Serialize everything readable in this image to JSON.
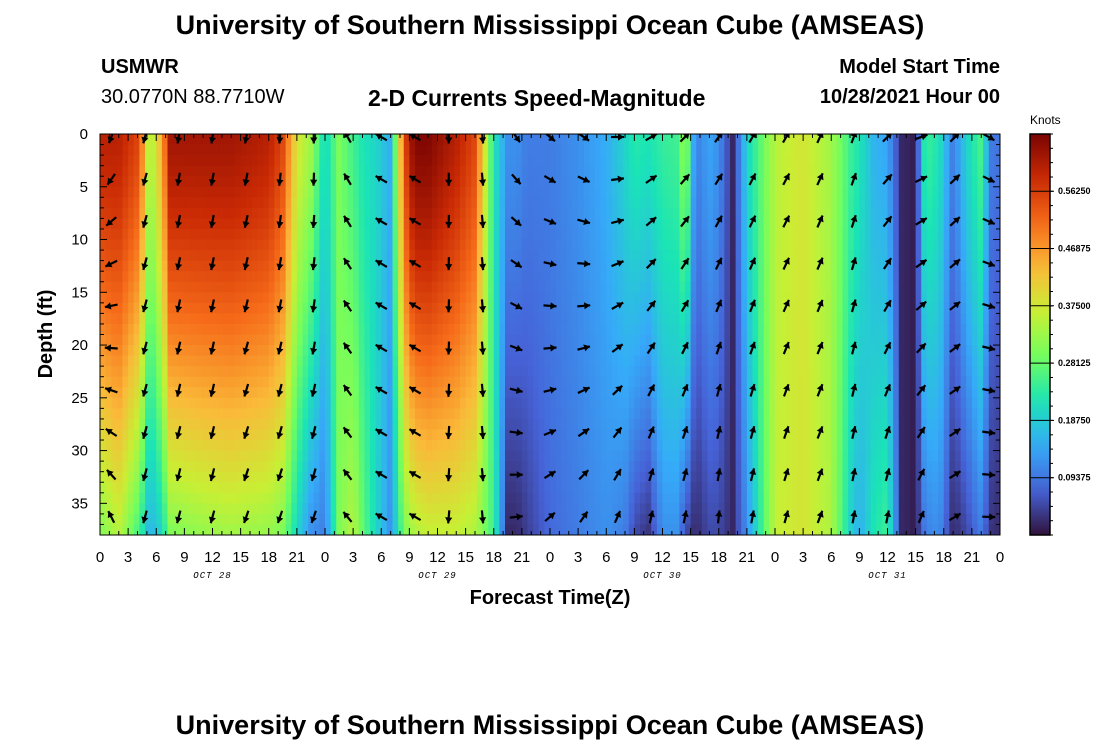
{
  "header": {
    "title": "University of Southern Mississippi Ocean Cube (AMSEAS)",
    "station": "USMWR",
    "coords": "30.0770N  88.7710W",
    "plot_title": "2-D Currents Speed-Magnitude",
    "model_label": "Model Start Time",
    "model_time": "10/28/2021 Hour 00"
  },
  "footer": {
    "title": "University of Southern Mississippi Ocean Cube (AMSEAS)"
  },
  "colors": {
    "palette": [
      "#30123b",
      "#4662d7",
      "#36aaf9",
      "#1ae4b6",
      "#72fe5e",
      "#c8ef34",
      "#faba39",
      "#f66b19",
      "#ca2a04",
      "#7a0403"
    ]
  },
  "chart_data": {
    "type": "heatmap",
    "title": "2-D Currents Speed-Magnitude",
    "xlabel": "Forecast Time(Z)",
    "ylabel": "Depth (ft)",
    "x_range_hours": [
      0,
      96
    ],
    "y_range_ft": [
      0,
      38
    ],
    "x_ticks": [
      "0",
      "3",
      "6",
      "9",
      "12",
      "15",
      "18",
      "21",
      "0",
      "3",
      "6",
      "9",
      "12",
      "15",
      "18",
      "21",
      "0",
      "3",
      "6",
      "9",
      "12",
      "15",
      "18",
      "21",
      "0",
      "3",
      "6",
      "9",
      "12",
      "15",
      "18",
      "21",
      "0"
    ],
    "day_labels": [
      "OCT 28",
      "OCT 29",
      "OCT 30",
      "OCT 31"
    ],
    "y_ticks": [
      "0",
      "5",
      "10",
      "15",
      "20",
      "25",
      "30",
      "35"
    ],
    "colorbar": {
      "unit": "Knots",
      "range": [
        0.0,
        0.656
      ],
      "labels": [
        "0.56250",
        "0.46875",
        "0.37500",
        "0.28125",
        "0.18750",
        "0.09375"
      ]
    },
    "profile_keypoints": {
      "hours": [
        0,
        2,
        4.2,
        5.3,
        6.6,
        7.5,
        11,
        14,
        18,
        19.5,
        21,
        22.5,
        24,
        25.5,
        27,
        28,
        29.5,
        31,
        32.5,
        33.5,
        35,
        38,
        40,
        42,
        43.5,
        44.5,
        45.5,
        48,
        51,
        54,
        56,
        57,
        58.5,
        60,
        61.5,
        62.5,
        63.5,
        65,
        66,
        67.5,
        69,
        72,
        75,
        78,
        80,
        81,
        82.5,
        84,
        85.5,
        87,
        88,
        89.5,
        91,
        92.5,
        94,
        95,
        96
      ],
      "surface_knots": [
        0.6,
        0.6,
        0.55,
        0.32,
        0.45,
        0.62,
        0.62,
        0.62,
        0.6,
        0.55,
        0.38,
        0.33,
        0.2,
        0.3,
        0.25,
        0.22,
        0.2,
        0.15,
        0.55,
        0.65,
        0.65,
        0.6,
        0.55,
        0.22,
        0.12,
        0.12,
        0.1,
        0.1,
        0.12,
        0.15,
        0.2,
        0.23,
        0.22,
        0.24,
        0.25,
        0.33,
        0.1,
        0.14,
        0.12,
        0.02,
        0.2,
        0.35,
        0.38,
        0.33,
        0.25,
        0.22,
        0.16,
        0.14,
        0.02,
        0.01,
        0.25,
        0.22,
        0.1,
        0.2,
        0.26,
        0.1,
        0.09
      ],
      "bottom_knots": [
        0.3,
        0.35,
        0.25,
        0.15,
        0.2,
        0.3,
        0.32,
        0.33,
        0.32,
        0.3,
        0.2,
        0.12,
        0.1,
        0.3,
        0.35,
        0.28,
        0.2,
        0.12,
        0.3,
        0.34,
        0.36,
        0.36,
        0.34,
        0.25,
        0.02,
        0.02,
        0.04,
        0.08,
        0.1,
        0.12,
        0.1,
        0.05,
        0.03,
        0.12,
        0.12,
        0.05,
        0.02,
        0.05,
        0.05,
        0.02,
        0.12,
        0.36,
        0.38,
        0.34,
        0.2,
        0.15,
        0.22,
        0.25,
        0.02,
        0.01,
        0.1,
        0.12,
        0.02,
        0.05,
        0.1,
        0.03,
        0.02
      ]
    },
    "vector_samples": {
      "hours": [
        1.2,
        4.8,
        8.4,
        12.0,
        15.6,
        19.2,
        22.8,
        26.4,
        30.0,
        33.6,
        37.2,
        40.8,
        44.4,
        48.0,
        51.6,
        55.2,
        58.8,
        62.4,
        66.0,
        69.6,
        73.2,
        76.8,
        80.4,
        84.0,
        87.6,
        91.2,
        94.8
      ],
      "depths_ft": [
        0,
        4,
        8,
        12,
        16,
        20,
        24,
        28,
        32,
        36
      ],
      "surface_direction_deg": [
        200,
        195,
        190,
        190,
        190,
        185,
        180,
        330,
        300,
        300,
        180,
        175,
        145,
        130,
        125,
        90,
        60,
        45,
        35,
        30,
        30,
        25,
        20,
        45,
        70,
        45,
        120
      ],
      "bottom_direction_deg": [
        340,
        195,
        195,
        195,
        200,
        200,
        200,
        320,
        300,
        300,
        185,
        175,
        80,
        45,
        30,
        20,
        10,
        10,
        5,
        10,
        15,
        20,
        10,
        10,
        20,
        60,
        90
      ]
    }
  }
}
